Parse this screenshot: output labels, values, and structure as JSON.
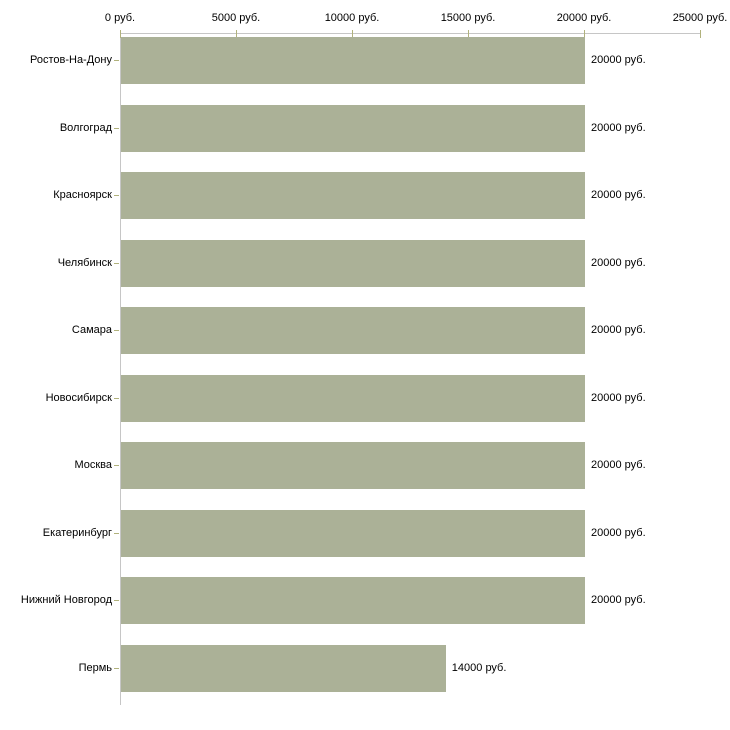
{
  "chart_data": {
    "type": "bar",
    "orientation": "horizontal",
    "title": "",
    "xlabel": "",
    "ylabel": "",
    "unit": "руб.",
    "categories": [
      "Ростов-На-Дону",
      "Волгоград",
      "Красноярск",
      "Челябинск",
      "Самара",
      "Новосибирск",
      "Москва",
      "Екатеринбург",
      "Нижний Новгород",
      "Пермь"
    ],
    "values": [
      20000,
      20000,
      20000,
      20000,
      20000,
      20000,
      20000,
      20000,
      20000,
      14000
    ],
    "value_labels": [
      "20000 руб.",
      "20000 руб.",
      "20000 руб.",
      "20000 руб.",
      "20000 руб.",
      "20000 руб.",
      "20000 руб.",
      "20000 руб.",
      "20000 руб.",
      "14000 руб."
    ],
    "x_ticks": [
      0,
      5000,
      10000,
      15000,
      20000,
      25000
    ],
    "x_tick_labels": [
      "0 руб.",
      "5000 руб.",
      "10000 руб.",
      "15000 руб.",
      "20000 руб.",
      "25000 руб."
    ],
    "xlim": [
      0,
      25000
    ],
    "grid": false,
    "legend": false,
    "axis_position": "top",
    "colors": {
      "bar": "#abb197",
      "axis_line": "#c6c6c6",
      "tick": "#b1b27c",
      "text": "#000000",
      "background": "#ffffff"
    }
  }
}
